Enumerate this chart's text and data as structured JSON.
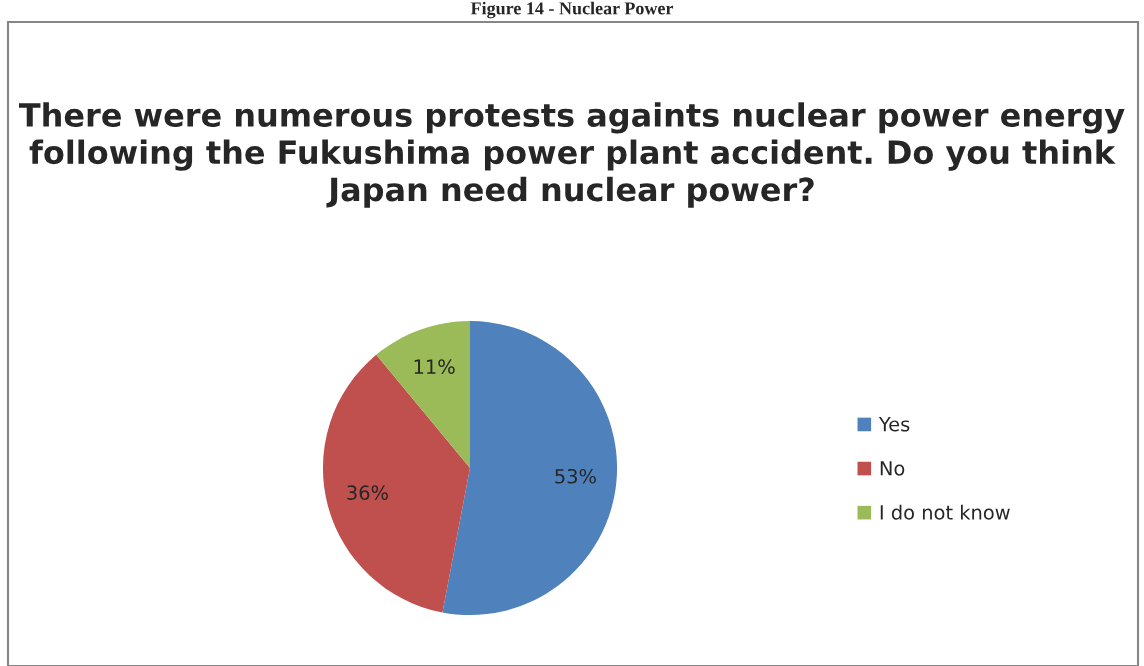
{
  "chart_data": {
    "type": "pie",
    "title": "There were numerous protests againts nuclear power energy following the Fukushima power plant accident. Do you think Japan need nuclear power?",
    "categories": [
      "Yes",
      "No",
      "I do not know"
    ],
    "values": [
      53,
      36,
      11
    ],
    "colors": [
      "#4f81bd",
      "#c0504d",
      "#9bbb59"
    ],
    "value_labels": [
      "53%",
      "36%",
      "11%"
    ],
    "legend": "right",
    "annotations": [
      "Figure 14 - Nuclear Power"
    ]
  }
}
